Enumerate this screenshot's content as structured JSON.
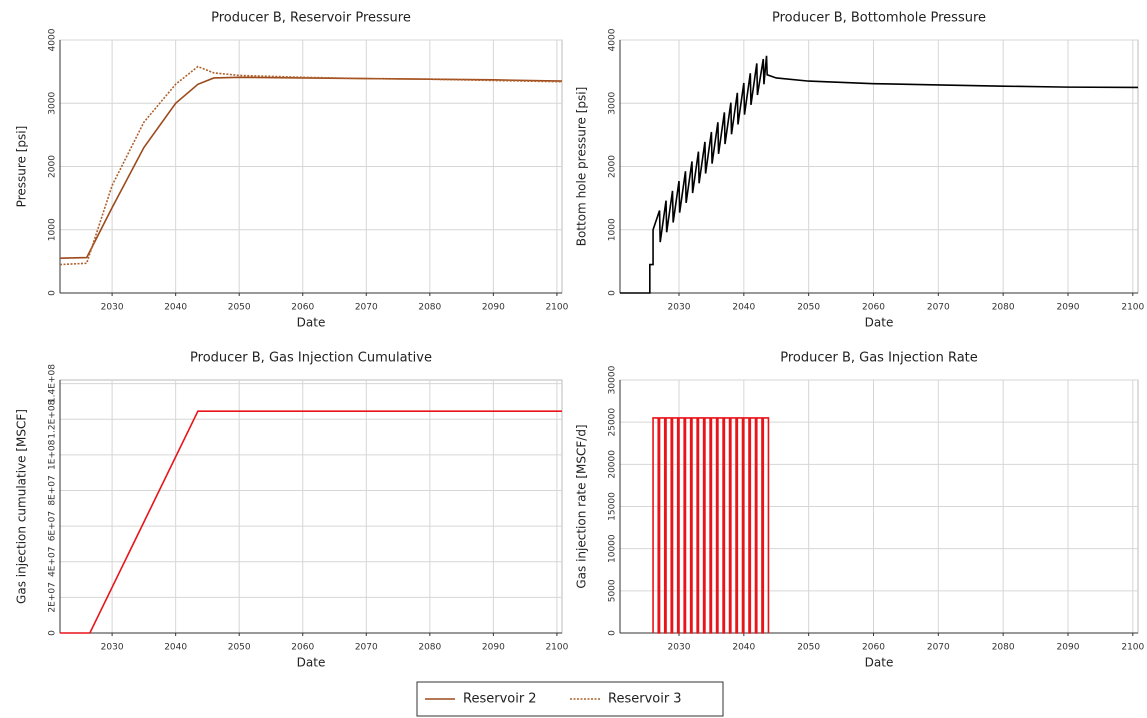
{
  "chart_data": [
    {
      "type": "line",
      "title": "Producer B, Reservoir Pressure",
      "x_label": "Date",
      "y_label": "Pressure [psi]",
      "x": [
        2021.8,
        2026,
        2030,
        2035,
        2040,
        2043.5,
        2046,
        2050,
        2060,
        2070,
        2080,
        2090,
        2100.8
      ],
      "series": [
        {
          "name": "Reservoir 2",
          "color": "#9c4a1c",
          "style": "solid",
          "values": [
            550,
            560,
            1350,
            2300,
            3000,
            3300,
            3400,
            3410,
            3400,
            3390,
            3380,
            3370,
            3350
          ]
        },
        {
          "name": "Reservoir 3",
          "color": "#b0602a",
          "style": "dotted",
          "values": [
            450,
            470,
            1700,
            2700,
            3300,
            3580,
            3480,
            3440,
            3410,
            3390,
            3380,
            3360,
            3340
          ]
        }
      ],
      "xlim": [
        2021.8,
        2100.8
      ],
      "xticks": [
        2030,
        2040,
        2050,
        2060,
        2070,
        2080,
        2090,
        2100
      ],
      "ylim": [
        0,
        4000
      ],
      "yticks": [
        0,
        1000,
        2000,
        3000,
        4000
      ],
      "grid": true
    },
    {
      "type": "line",
      "title": "Producer B, Bottomhole Pressure",
      "x_label": "Date",
      "y_label": "Bottom hole pressure [psi]",
      "color": "#000000",
      "x": [
        2020.9,
        2025.5,
        2025.5,
        2026,
        2026,
        2027,
        2027.1,
        2028,
        2028.1,
        2029,
        2029.1,
        2030,
        2030.1,
        2031,
        2031.1,
        2032,
        2032.1,
        2033,
        2033.1,
        2034,
        2034.1,
        2035,
        2035.1,
        2036,
        2036.1,
        2037,
        2037.1,
        2038,
        2038.1,
        2039,
        2039.1,
        2040,
        2040.1,
        2041,
        2041.1,
        2042,
        2042.1,
        2043,
        2043.1,
        2043.5,
        2043.6,
        2045,
        2050,
        2060,
        2070,
        2080,
        2090,
        2100.8
      ],
      "values": [
        0,
        0,
        450,
        450,
        1000,
        1305,
        805,
        1460,
        960,
        1615,
        1115,
        1770,
        1270,
        1925,
        1425,
        2080,
        1580,
        2235,
        1735,
        2390,
        1890,
        2545,
        2045,
        2700,
        2200,
        2855,
        2355,
        3010,
        2510,
        3165,
        2665,
        3320,
        2820,
        3475,
        2975,
        3630,
        3130,
        3700,
        3300,
        3750,
        3450,
        3400,
        3350,
        3310,
        3290,
        3270,
        3255,
        3250
      ],
      "xlim": [
        2020.9,
        2100.8
      ],
      "xticks": [
        2030,
        2040,
        2050,
        2060,
        2070,
        2080,
        2090,
        2100
      ],
      "ylim": [
        0,
        4000
      ],
      "yticks": [
        0,
        1000,
        2000,
        3000,
        4000
      ],
      "grid": true
    },
    {
      "type": "line",
      "title": "Producer B, Gas Injection Cumulative",
      "x_label": "Date",
      "y_label": "Gas injection cumulative [MSCF]",
      "color": "#e8141a",
      "x": [
        2021.8,
        2026.5,
        2043.5,
        2100.8
      ],
      "values": [
        0,
        0,
        124500000,
        124500000
      ],
      "xlim": [
        2021.8,
        2100.8
      ],
      "xticks": [
        2030,
        2040,
        2050,
        2060,
        2070,
        2080,
        2090,
        2100
      ],
      "ylim": [
        0,
        142000000
      ],
      "yticks": [
        0,
        {
          "value": 20000000,
          "label": "2E+07"
        },
        {
          "value": 40000000,
          "label": "4E+07"
        },
        {
          "value": 60000000,
          "label": "6E+07"
        },
        {
          "value": 80000000,
          "label": "8E+07"
        },
        {
          "value": 100000000,
          "label": "1E+08"
        },
        {
          "value": 120000000,
          "label": "1.2E+08"
        },
        {
          "value": 140000000,
          "label": "1.4E+08"
        }
      ],
      "grid": true
    },
    {
      "type": "line",
      "title": "Producer B, Gas Injection Rate",
      "x_label": "Date",
      "y_label": "Gas injection rate [MSCF/d]",
      "color": "#e8141a",
      "x": [
        2026,
        2026,
        2026.8,
        2026.8,
        2027,
        2027,
        2027.8,
        2027.8,
        2028,
        2028,
        2028.8,
        2028.8,
        2029,
        2029,
        2029.8,
        2029.8,
        2030,
        2030,
        2030.8,
        2030.8,
        2031,
        2031,
        2031.8,
        2031.8,
        2032,
        2032,
        2032.8,
        2032.8,
        2033,
        2033,
        2033.8,
        2033.8,
        2034,
        2034,
        2034.8,
        2034.8,
        2035,
        2035,
        2035.8,
        2035.8,
        2036,
        2036,
        2036.8,
        2036.8,
        2037,
        2037,
        2037.8,
        2037.8,
        2038,
        2038,
        2038.8,
        2038.8,
        2039,
        2039,
        2039.8,
        2039.8,
        2040,
        2040,
        2040.8,
        2040.8,
        2041,
        2041,
        2041.8,
        2041.8,
        2042,
        2042,
        2042.8,
        2042.8,
        2043,
        2043,
        2043.8,
        2043.8
      ],
      "values": [
        0,
        25500,
        25500,
        0,
        0,
        25500,
        25500,
        0,
        0,
        25500,
        25500,
        0,
        0,
        25500,
        25500,
        0,
        0,
        25500,
        25500,
        0,
        0,
        25500,
        25500,
        0,
        0,
        25500,
        25500,
        0,
        0,
        25500,
        25500,
        0,
        0,
        25500,
        25500,
        0,
        0,
        25500,
        25500,
        0,
        0,
        25500,
        25500,
        0,
        0,
        25500,
        25500,
        0,
        0,
        25500,
        25500,
        0,
        0,
        25500,
        25500,
        0,
        0,
        25500,
        25500,
        0,
        0,
        25500,
        25500,
        0,
        0,
        25500,
        25500,
        0,
        0,
        25500,
        25500,
        0
      ],
      "xlim": [
        2020.9,
        2100.8
      ],
      "xticks": [
        2030,
        2040,
        2050,
        2060,
        2070,
        2080,
        2090,
        2100
      ],
      "ylim": [
        0,
        30000
      ],
      "yticks": [
        0,
        5000,
        10000,
        15000,
        20000,
        25000,
        30000
      ],
      "grid": true
    }
  ]
}
